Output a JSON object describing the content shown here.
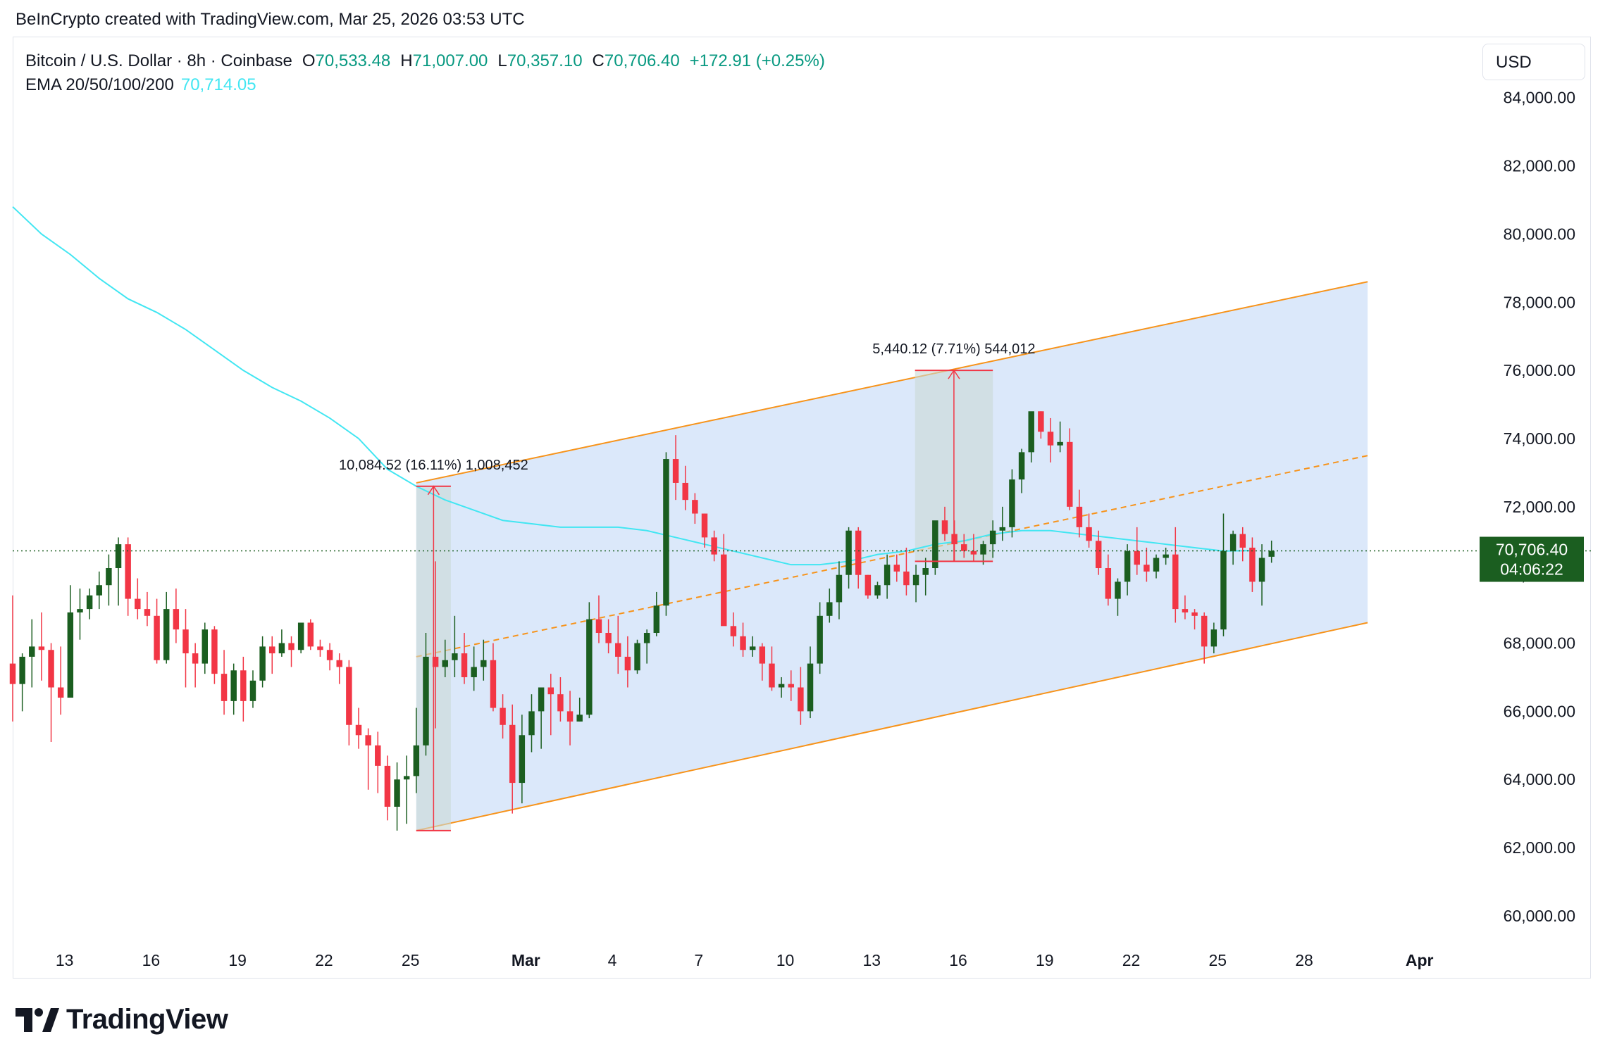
{
  "header": {
    "credit": "BeInCrypto created with TradingView.com, Mar 25, 2026 03:53 UTC"
  },
  "legend": {
    "symbol": "Bitcoin / U.S. Dollar · 8h · Coinbase",
    "open_label": "O",
    "open": "70,533.48",
    "high_label": "H",
    "high": "71,007.00",
    "low_label": "L",
    "low": "70,357.10",
    "close_label": "C",
    "close": "70,706.40",
    "change": "+172.91 (+0.25%)",
    "ema_label": "EMA 20/50/100/200",
    "ema_value": "70,714.05"
  },
  "toolbar": {
    "currency": "USD"
  },
  "price_tag": {
    "price": "70,706.40",
    "countdown": "04:06:22"
  },
  "brand": {
    "name": "TradingView"
  },
  "colors": {
    "up": "#089981",
    "up_body": "#1b5e20",
    "down": "#f23645",
    "ema": "#42e6f2",
    "channel_fill": "#dbe8fa",
    "channel_line": "#f7931a",
    "measure": "#f23645",
    "tag_bg": "#1b5e20"
  },
  "chart_data": {
    "type": "candlestick",
    "title": "",
    "timeframe": "8h",
    "y_axis": {
      "ylim": [
        59400,
        84800
      ],
      "ticks": [
        60000,
        62000,
        64000,
        66000,
        68000,
        70000,
        72000,
        74000,
        76000,
        78000,
        80000,
        82000
      ],
      "tick_labels": [
        "60,000.00",
        "62,000.00",
        "64,000.00",
        "66,000.00",
        "68,000.00",
        "70,000.00",
        "72,000.00",
        "74,000.00",
        "76,000.00",
        "78,000.00",
        "80,000.00",
        "82,000.00"
      ],
      "tick_label_top_partial": "84,000.00"
    },
    "x_axis": {
      "start_date": "2026-02-11",
      "xlim_days": [
        0.0,
        50.2
      ],
      "ticks": [
        {
          "label": "13",
          "day": 1.8
        },
        {
          "label": "16",
          "day": 4.8
        },
        {
          "label": "19",
          "day": 7.8
        },
        {
          "label": "22",
          "day": 10.8
        },
        {
          "label": "25",
          "day": 13.8
        },
        {
          "label": "Mar",
          "day": 17.8,
          "bold": true
        },
        {
          "label": "4",
          "day": 20.8
        },
        {
          "label": "7",
          "day": 23.8
        },
        {
          "label": "10",
          "day": 26.8
        },
        {
          "label": "13",
          "day": 29.8
        },
        {
          "label": "16",
          "day": 32.8
        },
        {
          "label": "19",
          "day": 35.8
        },
        {
          "label": "22",
          "day": 38.8
        },
        {
          "label": "25",
          "day": 41.8
        },
        {
          "label": "28",
          "day": 44.8
        },
        {
          "label": "Apr",
          "day": 48.8,
          "bold": true
        }
      ]
    },
    "candles_ohlc": [
      [
        67400,
        69400,
        65700,
        66800
      ],
      [
        66800,
        67700,
        66000,
        67600
      ],
      [
        67600,
        68700,
        66700,
        67900
      ],
      [
        67900,
        68900,
        66900,
        67800
      ],
      [
        67800,
        68000,
        65100,
        66700
      ],
      [
        66700,
        67900,
        65900,
        66400
      ],
      [
        66400,
        69700,
        66400,
        68900
      ],
      [
        68900,
        69600,
        68100,
        69000
      ],
      [
        69000,
        69600,
        68700,
        69400
      ],
      [
        69400,
        70100,
        69000,
        69700
      ],
      [
        69700,
        70600,
        69100,
        70200
      ],
      [
        70200,
        71100,
        69100,
        70900
      ],
      [
        70900,
        71100,
        68800,
        69300
      ],
      [
        69300,
        69900,
        68700,
        69000
      ],
      [
        69000,
        69500,
        68500,
        68800
      ],
      [
        68800,
        69300,
        67400,
        67500
      ],
      [
        67500,
        69500,
        67400,
        69000
      ],
      [
        69000,
        69600,
        68000,
        68400
      ],
      [
        68400,
        69000,
        66700,
        67700
      ],
      [
        67700,
        68000,
        66700,
        67400
      ],
      [
        67400,
        68600,
        67100,
        68400
      ],
      [
        68400,
        68500,
        66800,
        67100
      ],
      [
        67100,
        67800,
        65900,
        66300
      ],
      [
        66300,
        67400,
        65900,
        67200
      ],
      [
        67200,
        67600,
        65700,
        66300
      ],
      [
        66300,
        67200,
        66100,
        66900
      ],
      [
        66900,
        68200,
        66700,
        67900
      ],
      [
        67900,
        68200,
        67100,
        67700
      ],
      [
        67700,
        68400,
        67600,
        68000
      ],
      [
        68000,
        68200,
        67300,
        67800
      ],
      [
        67800,
        68500,
        67700,
        68600
      ],
      [
        68600,
        68700,
        67800,
        67900
      ],
      [
        67900,
        68100,
        67600,
        67800
      ],
      [
        67800,
        68000,
        67200,
        67500
      ],
      [
        67500,
        67700,
        66800,
        67300
      ],
      [
        67300,
        67500,
        65000,
        65600
      ],
      [
        65600,
        66100,
        64900,
        65300
      ],
      [
        65300,
        65500,
        63700,
        65000
      ],
      [
        65000,
        65400,
        63600,
        64400
      ],
      [
        64400,
        64700,
        62800,
        63200
      ],
      [
        63200,
        64500,
        62500,
        64000
      ],
      [
        64000,
        64700,
        62700,
        64100
      ],
      [
        64100,
        66100,
        63600,
        65000
      ],
      [
        65000,
        68300,
        64700,
        67600
      ],
      [
        67600,
        70400,
        65500,
        67300
      ],
      [
        67300,
        68100,
        67000,
        67500
      ],
      [
        67500,
        68800,
        67000,
        67700
      ],
      [
        67700,
        68300,
        66800,
        67000
      ],
      [
        67000,
        67900,
        66600,
        67300
      ],
      [
        67300,
        68100,
        66900,
        67500
      ],
      [
        67500,
        68000,
        66000,
        66100
      ],
      [
        66100,
        66500,
        65200,
        65600
      ],
      [
        65600,
        66200,
        63000,
        63900
      ],
      [
        63900,
        65900,
        63300,
        65300
      ],
      [
        65300,
        66500,
        64800,
        66000
      ],
      [
        66000,
        66700,
        64900,
        66700
      ],
      [
        66700,
        67100,
        65300,
        66500
      ],
      [
        66500,
        67000,
        65700,
        66000
      ],
      [
        66000,
        66600,
        65000,
        65700
      ],
      [
        65700,
        66400,
        65700,
        65900
      ],
      [
        65900,
        69200,
        65800,
        68700
      ],
      [
        68700,
        69400,
        68000,
        68300
      ],
      [
        68300,
        68700,
        67700,
        68000
      ],
      [
        68000,
        68800,
        67100,
        67600
      ],
      [
        67600,
        68200,
        66700,
        67200
      ],
      [
        67200,
        68100,
        67100,
        68000
      ],
      [
        68000,
        68400,
        67400,
        68300
      ],
      [
        68300,
        69500,
        68200,
        69100
      ],
      [
        69100,
        73600,
        68800,
        73400
      ],
      [
        73400,
        74100,
        72200,
        72700
      ],
      [
        72700,
        73200,
        71900,
        72200
      ],
      [
        72200,
        72400,
        71500,
        71800
      ],
      [
        71800,
        71800,
        70800,
        71100
      ],
      [
        71100,
        71300,
        70400,
        70600
      ],
      [
        70600,
        71200,
        68600,
        68500
      ],
      [
        68500,
        68900,
        67900,
        68200
      ],
      [
        68200,
        68600,
        67600,
        67800
      ],
      [
        67800,
        68200,
        67600,
        67900
      ],
      [
        67900,
        68000,
        66900,
        67400
      ],
      [
        67400,
        67900,
        66600,
        66700
      ],
      [
        66700,
        67000,
        66400,
        66800
      ],
      [
        66800,
        67200,
        66300,
        66700
      ],
      [
        66700,
        67300,
        65600,
        66000
      ],
      [
        66000,
        67900,
        65800,
        67400
      ],
      [
        67400,
        69200,
        67100,
        68800
      ],
      [
        68800,
        69600,
        68600,
        69200
      ],
      [
        69200,
        70400,
        68700,
        70000
      ],
      [
        70000,
        71400,
        69600,
        71300
      ],
      [
        71300,
        71400,
        69600,
        70000
      ],
      [
        70000,
        70000,
        69300,
        69400
      ],
      [
        69400,
        69800,
        69300,
        69700
      ],
      [
        69700,
        70600,
        69300,
        70300
      ],
      [
        70300,
        70600,
        69800,
        70100
      ],
      [
        70100,
        70800,
        69400,
        69700
      ],
      [
        69700,
        70300,
        69200,
        70000
      ],
      [
        70000,
        70500,
        69400,
        70200
      ],
      [
        70200,
        71400,
        70000,
        71600
      ],
      [
        71600,
        72000,
        71000,
        71200
      ],
      [
        71200,
        71600,
        70400,
        70900
      ],
      [
        70900,
        71200,
        70500,
        70700
      ],
      [
        70700,
        71200,
        70400,
        70600
      ],
      [
        70600,
        71000,
        70300,
        70900
      ],
      [
        70900,
        71600,
        70500,
        71300
      ],
      [
        71300,
        72000,
        71000,
        71400
      ],
      [
        71400,
        73100,
        71100,
        72800
      ],
      [
        72800,
        73700,
        72400,
        73600
      ],
      [
        73600,
        74700,
        73300,
        74800
      ],
      [
        74800,
        74800,
        74000,
        74200
      ],
      [
        74200,
        74600,
        73300,
        73800
      ],
      [
        73800,
        74500,
        73600,
        73900
      ],
      [
        73900,
        74300,
        71900,
        72000
      ],
      [
        72000,
        72500,
        71100,
        71400
      ],
      [
        71400,
        71800,
        70800,
        71000
      ],
      [
        71000,
        71300,
        70000,
        70200
      ],
      [
        70200,
        70600,
        69100,
        69300
      ],
      [
        69300,
        69900,
        68800,
        69800
      ],
      [
        69800,
        70900,
        69400,
        70700
      ],
      [
        70700,
        71400,
        70000,
        70300
      ],
      [
        70300,
        70800,
        69800,
        70100
      ],
      [
        70100,
        70600,
        69900,
        70500
      ],
      [
        70500,
        70800,
        70300,
        70600
      ],
      [
        70600,
        71400,
        68600,
        69000
      ],
      [
        69000,
        69400,
        68700,
        68900
      ],
      [
        68900,
        69000,
        68400,
        68800
      ],
      [
        68800,
        68900,
        67400,
        67900
      ],
      [
        67900,
        68600,
        67700,
        68400
      ],
      [
        68400,
        71800,
        68200,
        70700
      ],
      [
        70700,
        71300,
        70300,
        71200
      ],
      [
        71200,
        71400,
        70400,
        70800
      ],
      [
        70800,
        71100,
        69500,
        69800
      ],
      [
        69800,
        70900,
        69100,
        70500
      ],
      [
        70533.48,
        71007.0,
        70357.1,
        70706.4
      ]
    ],
    "ema_200": [
      [
        0,
        80800
      ],
      [
        1,
        80000
      ],
      [
        2,
        79400
      ],
      [
        3,
        78700
      ],
      [
        4,
        78100
      ],
      [
        5,
        77700
      ],
      [
        6,
        77200
      ],
      [
        7,
        76600
      ],
      [
        8,
        76000
      ],
      [
        9,
        75500
      ],
      [
        10,
        75100
      ],
      [
        11,
        74600
      ],
      [
        12,
        74000
      ],
      [
        13,
        73100
      ],
      [
        14,
        72600
      ],
      [
        15,
        72200
      ],
      [
        16,
        71900
      ],
      [
        17,
        71600
      ],
      [
        18,
        71500
      ],
      [
        19,
        71400
      ],
      [
        20,
        71400
      ],
      [
        21,
        71400
      ],
      [
        22,
        71300
      ],
      [
        23,
        71100
      ],
      [
        24,
        70900
      ],
      [
        25,
        70700
      ],
      [
        26,
        70500
      ],
      [
        27,
        70300
      ],
      [
        28,
        70300
      ],
      [
        29,
        70400
      ],
      [
        30,
        70600
      ],
      [
        31,
        70700
      ],
      [
        32,
        70900
      ],
      [
        33,
        71000
      ],
      [
        34,
        71200
      ],
      [
        35,
        71300
      ],
      [
        36,
        71300
      ],
      [
        37,
        71200
      ],
      [
        38,
        71100
      ],
      [
        39,
        71000
      ],
      [
        40,
        70900
      ],
      [
        41,
        70800
      ],
      [
        42,
        70700
      ],
      [
        43,
        70714
      ]
    ],
    "channel": {
      "upper": [
        [
          14.0,
          72700
        ],
        [
          47.0,
          78600
        ]
      ],
      "lower": [
        [
          14.0,
          62500
        ],
        [
          47.0,
          68600
        ]
      ],
      "mid": [
        [
          14.0,
          67600
        ],
        [
          47.0,
          73500
        ]
      ]
    },
    "measurements": [
      {
        "label": "10,084.52 (16.11%) 1,008,452",
        "day_start": 14.0,
        "day_end": 15.2,
        "from": 62500,
        "to": 72600
      },
      {
        "label": "5,440.12 (7.71%) 544,012",
        "day_start": 31.3,
        "day_end": 34.0,
        "from": 70400,
        "to": 76000
      }
    ],
    "last_price": 70706.4
  }
}
